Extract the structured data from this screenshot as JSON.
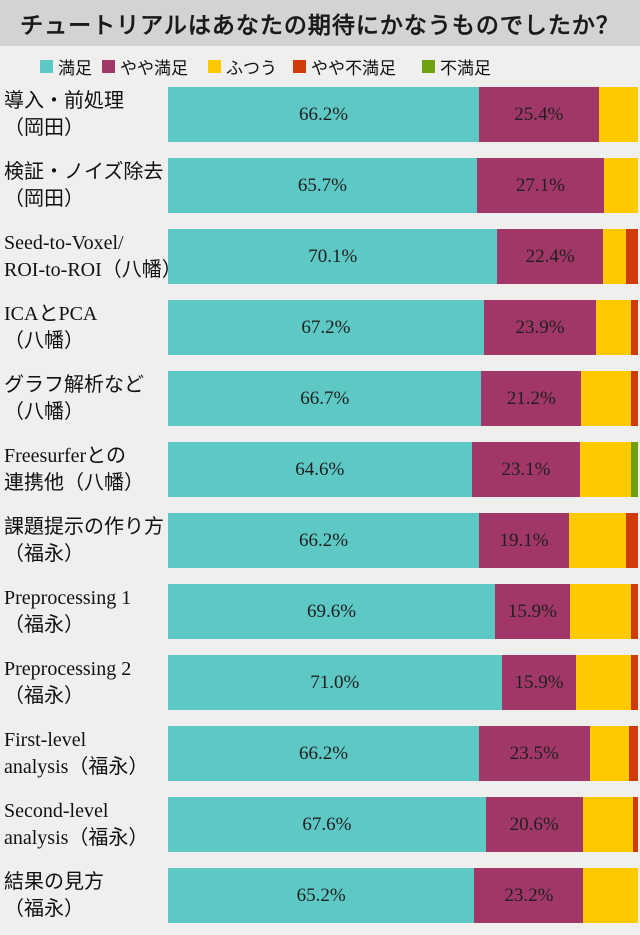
{
  "title": "チュートリアルはあなたの期待にかなうものでしたか？",
  "colors": {
    "background": "#EFEFEE",
    "title_band": "#D3D3D3",
    "text": "#1A1A1A",
    "satisfied": "#5EC8C5",
    "somewhat_satisfied": "#A03768",
    "neutral": "#FFC900",
    "somewhat_dissatisfied": "#D13A0A",
    "dissatisfied": "#6FA011"
  },
  "legend": {
    "items": [
      {
        "label": "満足",
        "color": "#5EC8C5"
      },
      {
        "label": "やや満足",
        "color": "#A03768"
      },
      {
        "label": "ふつう",
        "color": "#FFC900"
      },
      {
        "label": "やや不満足",
        "color": "#D13A0A"
      },
      {
        "label": "不満足",
        "color": "#6FA011"
      }
    ]
  },
  "chart_data": {
    "type": "bar",
    "orientation": "horizontal",
    "stacked": true,
    "unit": "percent",
    "xlim": [
      0,
      100
    ],
    "grid": false,
    "legend_position": "top",
    "title": "チュートリアルはあなたの期待にかなうものでしたか？",
    "series_names": [
      "満足",
      "やや満足",
      "ふつう",
      "やや不満足",
      "不満足"
    ],
    "series_keys": [
      "satisfied",
      "somewhat-satisfied",
      "neutral",
      "somewhat-dissatisfied",
      "dissatisfied"
    ],
    "series_colors": [
      "#5EC8C5",
      "#A03768",
      "#FFC900",
      "#D13A0A",
      "#6FA011"
    ],
    "data_label_note": "only 満足 and やや満足 segments carry printed % labels; ふつう/やや不満足/不満足 values estimated from segment widths",
    "rows": [
      {
        "label_lines": [
          "導入・前処理",
          "（岡田）"
        ],
        "values": [
          66.2,
          25.4,
          8.4,
          0,
          0
        ],
        "labels": [
          "66.2%",
          "25.4%",
          "",
          "",
          ""
        ]
      },
      {
        "label_lines": [
          "検証・ノイズ除去",
          "（岡田）"
        ],
        "values": [
          65.7,
          27.1,
          7.2,
          0,
          0
        ],
        "labels": [
          "65.7%",
          "27.1%",
          "",
          "",
          ""
        ]
      },
      {
        "label_lines": [
          "Seed-to-Voxel/",
          "ROI-to-ROI（八幡）"
        ],
        "values": [
          70.1,
          22.4,
          5.0,
          2.5,
          0
        ],
        "labels": [
          "70.1%",
          "22.4%",
          "",
          "",
          ""
        ]
      },
      {
        "label_lines": [
          "ICAとPCA",
          "（八幡）"
        ],
        "values": [
          67.2,
          23.9,
          7.4,
          1.5,
          0
        ],
        "labels": [
          "67.2%",
          "23.9%",
          "",
          "",
          ""
        ]
      },
      {
        "label_lines": [
          "グラフ解析など",
          "（八幡）"
        ],
        "values": [
          66.7,
          21.2,
          10.6,
          1.5,
          0
        ],
        "labels": [
          "66.7%",
          "21.2%",
          "",
          "",
          ""
        ]
      },
      {
        "label_lines": [
          "Freesurferとの",
          "連携他（八幡）"
        ],
        "values": [
          64.6,
          23.1,
          10.8,
          0,
          1.5
        ],
        "labels": [
          "64.6%",
          "23.1%",
          "",
          "",
          ""
        ]
      },
      {
        "label_lines": [
          "課題提示の作り方",
          "（福永）"
        ],
        "values": [
          66.2,
          19.1,
          12.2,
          2.5,
          0
        ],
        "labels": [
          "66.2%",
          "19.1%",
          "",
          "",
          ""
        ]
      },
      {
        "label_lines": [
          "Preprocessing 1",
          "（福永）"
        ],
        "values": [
          69.6,
          15.9,
          13.0,
          1.5,
          0
        ],
        "labels": [
          "69.6%",
          "15.9%",
          "",
          "",
          ""
        ]
      },
      {
        "label_lines": [
          "Preprocessing 2",
          "（福永）"
        ],
        "values": [
          71.0,
          15.9,
          11.6,
          1.5,
          0
        ],
        "labels": [
          "71.0%",
          "15.9%",
          "",
          "",
          ""
        ]
      },
      {
        "label_lines": [
          "First-level",
          "analysis（福永）"
        ],
        "values": [
          66.2,
          23.5,
          8.3,
          2.0,
          0
        ],
        "labels": [
          "66.2%",
          "23.5%",
          "",
          "",
          ""
        ]
      },
      {
        "label_lines": [
          "Second-level",
          "analysis（福永）"
        ],
        "values": [
          67.6,
          20.6,
          10.8,
          1.0,
          0
        ],
        "labels": [
          "67.6%",
          "20.6%",
          "",
          "",
          ""
        ]
      },
      {
        "label_lines": [
          "結果の見方",
          "（福永）"
        ],
        "values": [
          65.2,
          23.2,
          11.6,
          0,
          0
        ],
        "labels": [
          "65.2%",
          "23.2%",
          "",
          "",
          ""
        ]
      }
    ]
  }
}
